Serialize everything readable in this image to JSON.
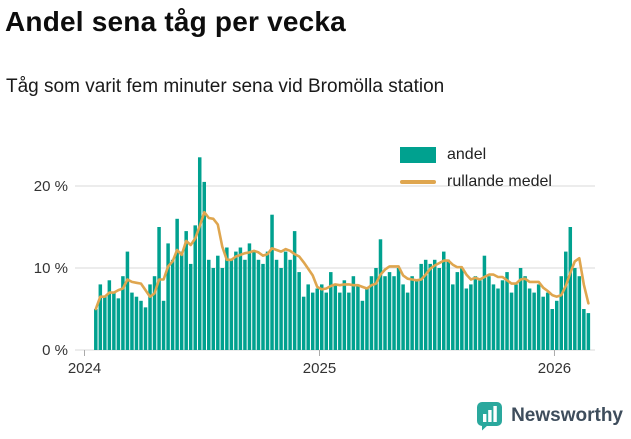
{
  "header": {
    "title": "Andel sena tåg per vecka",
    "subtitle": "Tåg som varit fem minuter sena vid Bromölla station"
  },
  "legend": {
    "items": [
      {
        "label": "andel",
        "type": "bar",
        "color": "#00a18f"
      },
      {
        "label": "rullande medel",
        "type": "line",
        "color": "#dfa64f"
      }
    ]
  },
  "brand": {
    "name": "Newsworthy",
    "icon_color": "#2aa89d",
    "text_color": "#3e4d5c"
  },
  "chart_data": {
    "type": "bar",
    "title": "Andel sena tåg per vecka",
    "subtitle": "Tåg som varit fem minuter sena vid Bromölla station",
    "x_unit": "week",
    "x_start": {
      "year": 2024,
      "week": 3
    },
    "ylim": [
      0,
      25
    ],
    "grid": true,
    "legend_position": "top-right",
    "y_ticks": [
      {
        "value": 0,
        "label": "0 %"
      },
      {
        "value": 10,
        "label": "10 %"
      },
      {
        "value": 20,
        "label": "20 %"
      }
    ],
    "x_ticks": [
      {
        "label": "2024",
        "week_index": 0
      },
      {
        "label": "2025",
        "week_index": 52
      },
      {
        "label": "2026",
        "week_index": 104
      }
    ],
    "series": [
      {
        "name": "andel",
        "type": "bar",
        "color": "#00a18f",
        "values": [
          5.0,
          8.0,
          6.5,
          8.5,
          7.0,
          6.3,
          9.0,
          12.0,
          7.0,
          6.5,
          6.0,
          5.2,
          8.0,
          9.0,
          15.0,
          6.0,
          13.0,
          11.0,
          16.0,
          12.0,
          14.5,
          10.5,
          15.2,
          23.5,
          20.5,
          11.0,
          10.0,
          11.5,
          10.0,
          12.5,
          11.0,
          12.0,
          12.5,
          11.0,
          13.0,
          12.0,
          11.0,
          10.5,
          12.0,
          16.5,
          11.0,
          10.0,
          12.0,
          11.0,
          14.5,
          9.5,
          6.5,
          8.0,
          7.0,
          7.5,
          8.0,
          7.0,
          9.5,
          8.0,
          7.0,
          8.5,
          7.0,
          9.0,
          8.0,
          6.0,
          7.5,
          9.0,
          10.0,
          13.5,
          9.0,
          9.5,
          9.0,
          10.0,
          8.0,
          7.0,
          9.0,
          8.5,
          10.5,
          11.0,
          10.5,
          11.0,
          10.0,
          12.0,
          11.0,
          8.0,
          9.5,
          10.0,
          7.5,
          8.0,
          9.0,
          8.5,
          11.5,
          9.0,
          8.0,
          7.5,
          8.5,
          9.5,
          7.0,
          8.0,
          10.0,
          9.0,
          7.5,
          7.0,
          8.0,
          6.5,
          7.0,
          5.0,
          6.0,
          9.0,
          12.0,
          15.0,
          10.0,
          9.0,
          5.0,
          4.5
        ]
      },
      {
        "name": "rullande medel",
        "type": "line",
        "color": "#dfa64f",
        "values": [
          5.0,
          6.5,
          6.5,
          7.0,
          7.0,
          7.3,
          7.5,
          8.6,
          8.3,
          8.2,
          8.1,
          7.3,
          6.5,
          6.9,
          8.6,
          8.6,
          10.2,
          10.8,
          12.2,
          11.6,
          13.3,
          12.8,
          13.6,
          15.1,
          16.8,
          16.1,
          16.0,
          15.3,
          12.6,
          11.0,
          11.0,
          11.4,
          11.6,
          11.8,
          11.9,
          12.1,
          11.9,
          11.5,
          11.7,
          12.4,
          12.2,
          12.0,
          12.3,
          12.1,
          11.7,
          11.4,
          10.7,
          9.9,
          9.1,
          7.7,
          7.4,
          7.5,
          7.8,
          8.0,
          7.9,
          8.0,
          8.0,
          7.9,
          7.9,
          7.7,
          7.5,
          7.9,
          8.1,
          9.2,
          9.8,
          10.2,
          10.2,
          10.2,
          9.1,
          8.7,
          8.6,
          8.5,
          8.6,
          9.2,
          9.9,
          10.3,
          10.6,
          10.9,
          10.9,
          10.4,
          10.1,
          10.1,
          9.2,
          8.6,
          8.8,
          8.6,
          8.9,
          9.2,
          9.2,
          8.9,
          8.9,
          8.5,
          8.1,
          8.1,
          8.6,
          8.7,
          8.3,
          8.3,
          8.3,
          7.6,
          7.2,
          6.7,
          6.5,
          6.7,
          7.8,
          9.4,
          10.8,
          11.2,
          8.0,
          5.7
        ]
      }
    ]
  }
}
